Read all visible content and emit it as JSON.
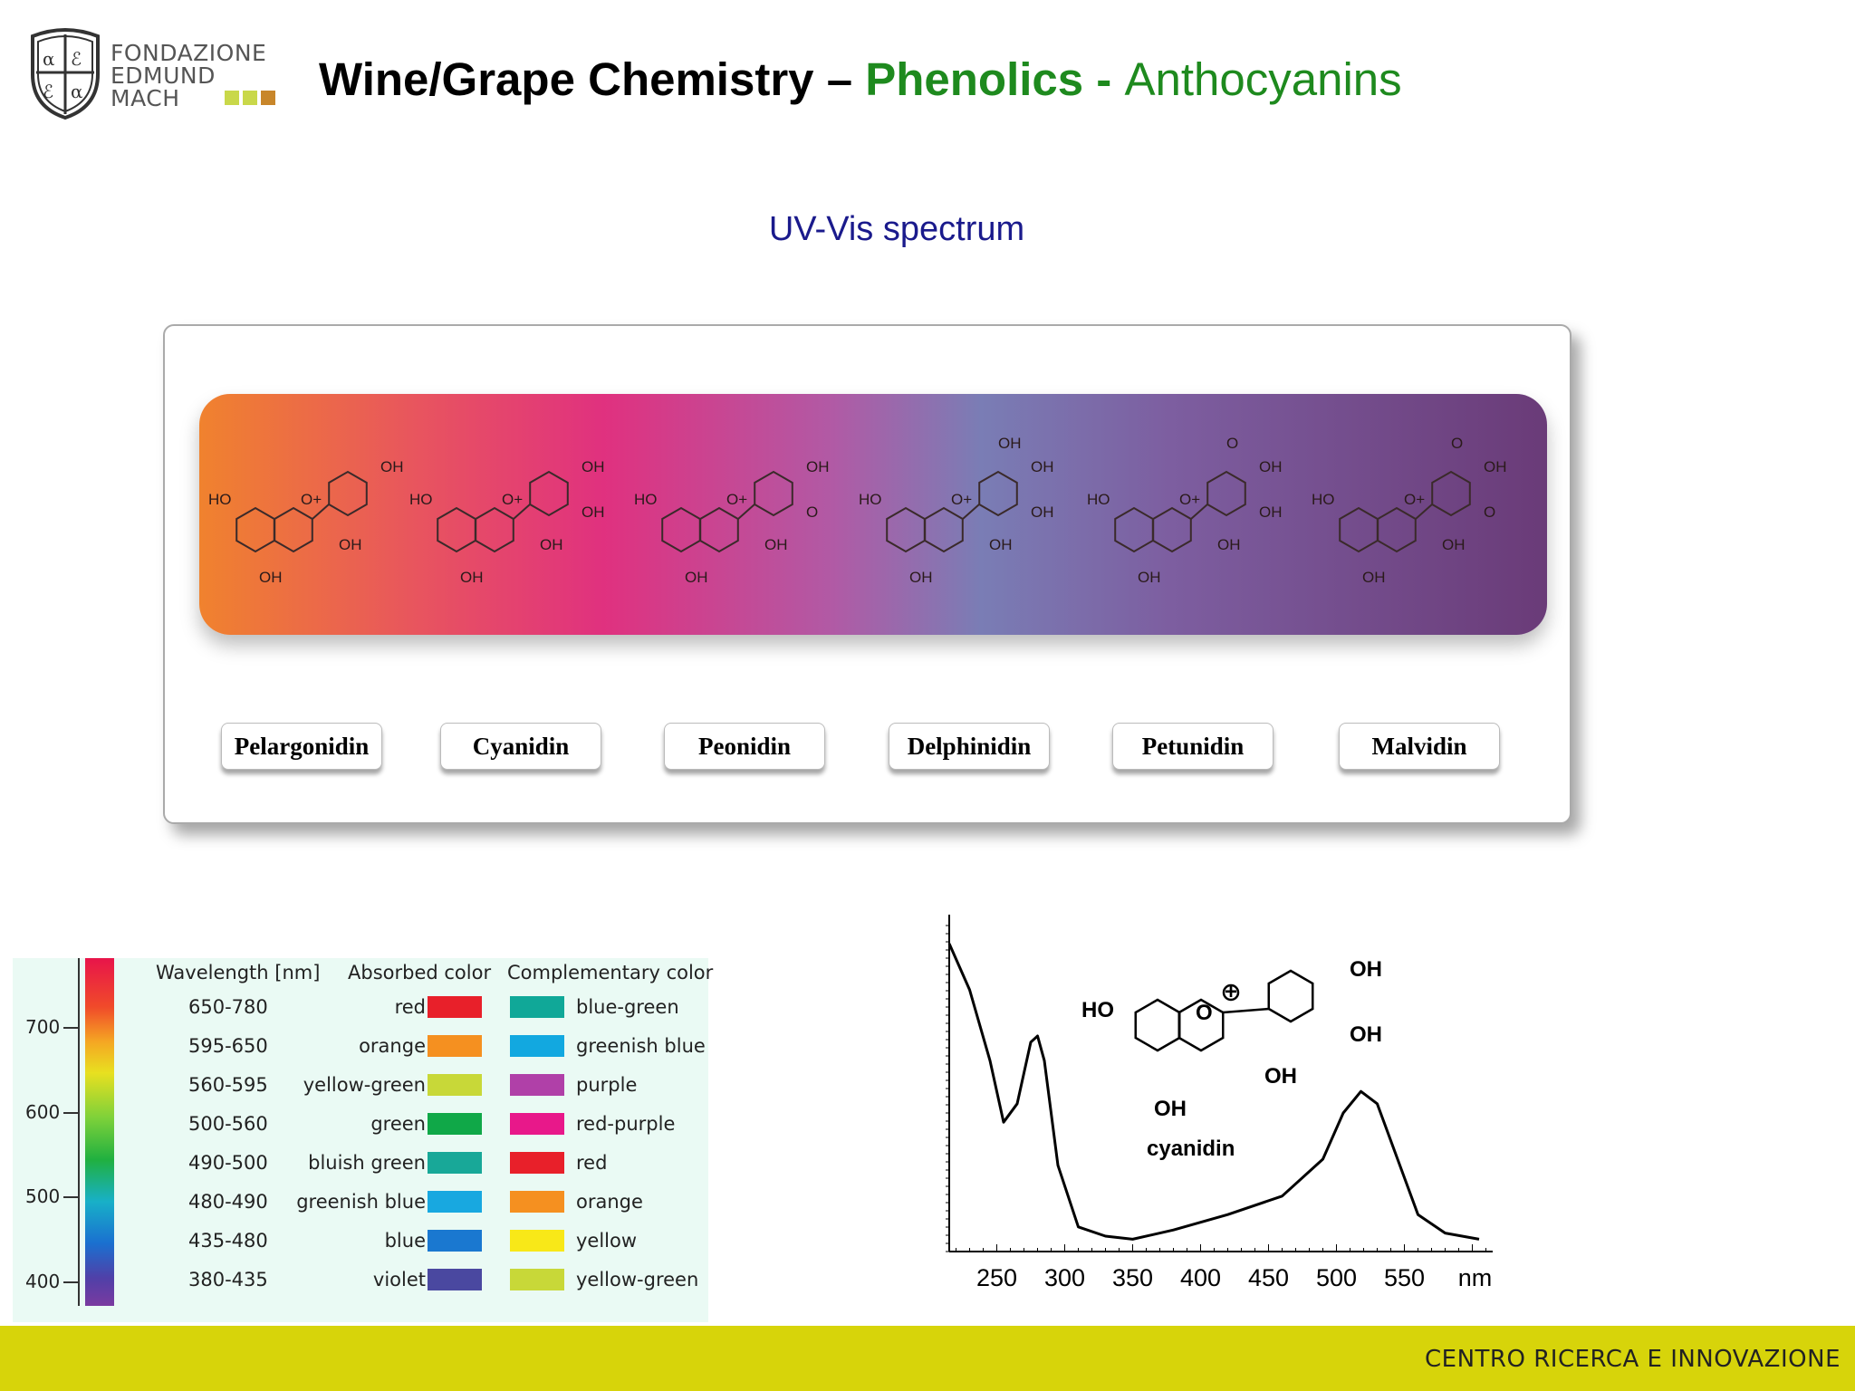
{
  "logo": {
    "lines": [
      "FONDAZIONE",
      "EDMUND",
      "MACH"
    ],
    "square_colors": [
      "#c9d84a",
      "#c9d84a",
      "#c8862a"
    ]
  },
  "title": {
    "part1": "Wine/Grape Chemistry – ",
    "part2": "Phenolics - ",
    "part3": "Anthocyanins"
  },
  "subtitle": "UV-Vis spectrum",
  "anthocyanins": [
    "Pelargonidin",
    "Cyanidin",
    "Peonidin",
    "Delphinidin",
    "Petunidin",
    "Malvidin"
  ],
  "molecule_labels": {
    "ho": "HO",
    "oh": "OH",
    "oplus": "O+"
  },
  "color_table": {
    "headers": {
      "wavelength": "Wavelength [nm]",
      "absorbed": "Absorbed color",
      "complementary": "Complementary color"
    },
    "axis_ticks": [
      "700",
      "600",
      "500",
      "400"
    ],
    "rows": [
      {
        "wl": "650-780",
        "absorbed": "red",
        "abs_color": "#e8202a",
        "complementary": "blue-green",
        "comp_color": "#10a898"
      },
      {
        "wl": "595-650",
        "absorbed": "orange",
        "abs_color": "#f59020",
        "complementary": "greenish blue",
        "comp_color": "#12a8e0"
      },
      {
        "wl": "560-595",
        "absorbed": "yellow-green",
        "abs_color": "#c8d838",
        "complementary": "purple",
        "comp_color": "#b040a8"
      },
      {
        "wl": "500-560",
        "absorbed": "green",
        "abs_color": "#10a848",
        "complementary": "red-purple",
        "comp_color": "#e8188a"
      },
      {
        "wl": "490-500",
        "absorbed": "bluish green",
        "abs_color": "#18a898",
        "complementary": "red",
        "comp_color": "#e8202a"
      },
      {
        "wl": "480-490",
        "absorbed": "greenish blue",
        "abs_color": "#18a8e0",
        "complementary": "orange",
        "comp_color": "#f59020"
      },
      {
        "wl": "435-480",
        "absorbed": "blue",
        "abs_color": "#1a78d0",
        "complementary": "yellow",
        "comp_color": "#f8e818"
      },
      {
        "wl": "380-435",
        "absorbed": "violet",
        "abs_color": "#4a48a0",
        "complementary": "yellow-green",
        "comp_color": "#c8d838"
      }
    ]
  },
  "spectrum": {
    "compound": "cyanidin",
    "x_ticks": [
      "250",
      "300",
      "350",
      "400",
      "450",
      "500",
      "550"
    ],
    "x_unit": "nm",
    "molecule": {
      "ho": "HO",
      "oh": "OH",
      "o": "O",
      "plus": "+"
    }
  },
  "chart_data": {
    "type": "line",
    "title": "",
    "xlabel": "nm",
    "ylabel": "",
    "xlim": [
      215,
      615
    ],
    "series": [
      {
        "x": [
          215,
          230,
          245,
          255,
          265,
          275,
          280,
          285,
          295,
          310,
          330,
          350,
          380,
          420,
          460,
          490,
          505,
          518,
          530,
          545,
          560,
          580,
          605
        ],
        "y": [
          1.0,
          0.85,
          0.62,
          0.42,
          0.48,
          0.68,
          0.7,
          0.62,
          0.28,
          0.08,
          0.05,
          0.04,
          0.07,
          0.12,
          0.18,
          0.3,
          0.45,
          0.52,
          0.48,
          0.3,
          0.12,
          0.06,
          0.04
        ]
      }
    ]
  },
  "footer": "CENTRO RICERCA E INNOVAZIONE"
}
